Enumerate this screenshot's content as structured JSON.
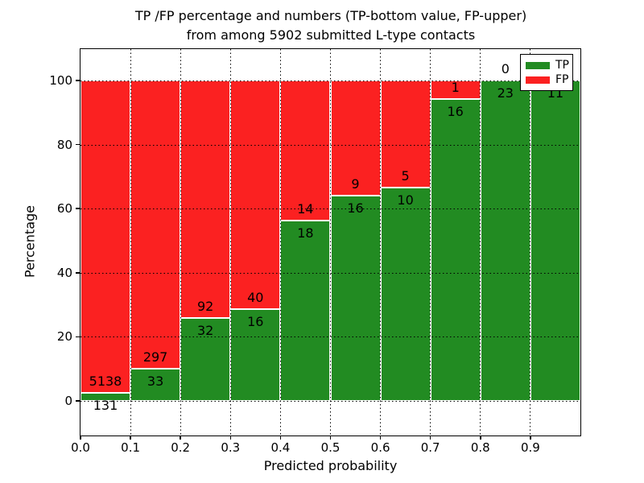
{
  "figure": {
    "title_line1": "TP /FP percentage and numbers (TP-bottom value, FP-upper)",
    "title_line2": "from among 5902 submitted L-type contacts",
    "xlabel": "Predicted probability",
    "ylabel": "Percentage"
  },
  "legend": {
    "items": [
      {
        "label": "TP",
        "color": "#228b22"
      },
      {
        "label": "FP",
        "color": "#fb2121"
      }
    ]
  },
  "colors": {
    "tp_green": "#228b22",
    "fp_red": "#fb2121",
    "grid": "#000000",
    "background": "#ffffff"
  },
  "chart_data": {
    "type": "bar",
    "stacked": true,
    "normalized_to_percent": 100,
    "title": "TP /FP percentage and numbers (TP-bottom value, FP-upper) from among 5902 submitted L-type contacts",
    "xlabel": "Predicted probability",
    "ylabel": "Percentage",
    "x_ticks": [
      "0.0",
      "0.1",
      "0.2",
      "0.3",
      "0.4",
      "0.5",
      "0.6",
      "0.7",
      "0.8",
      "0.9"
    ],
    "y_ticks": [
      0,
      20,
      40,
      60,
      80,
      100
    ],
    "ylim": [
      -10.8,
      109.8
    ],
    "xlim": [
      0.0,
      1.0
    ],
    "bin_width": 0.1,
    "grid": "dotted",
    "legend_position": "upper right",
    "categories": [
      "0.0-0.1",
      "0.1-0.2",
      "0.2-0.3",
      "0.3-0.4",
      "0.4-0.5",
      "0.5-0.6",
      "0.6-0.7",
      "0.7-0.8",
      "0.8-0.9",
      "0.9-1.0"
    ],
    "series": [
      {
        "name": "TP",
        "color": "#228b22",
        "counts": [
          131,
          33,
          32,
          16,
          18,
          16,
          10,
          16,
          23,
          11
        ]
      },
      {
        "name": "FP",
        "color": "#fb2121",
        "counts": [
          5138,
          297,
          92,
          40,
          14,
          9,
          5,
          1,
          0,
          0
        ]
      }
    ],
    "tp_percent": [
      2.49,
      10.0,
      25.81,
      28.57,
      56.25,
      64.0,
      66.67,
      94.12,
      100.0,
      100.0
    ],
    "fp_labels": [
      "5138",
      "297",
      "92",
      "40",
      "14",
      "9",
      "5",
      "1",
      "0",
      ""
    ],
    "tp_labels": [
      "131",
      "33",
      "32",
      "16",
      "18",
      "16",
      "10",
      "16",
      "23",
      "11"
    ]
  }
}
